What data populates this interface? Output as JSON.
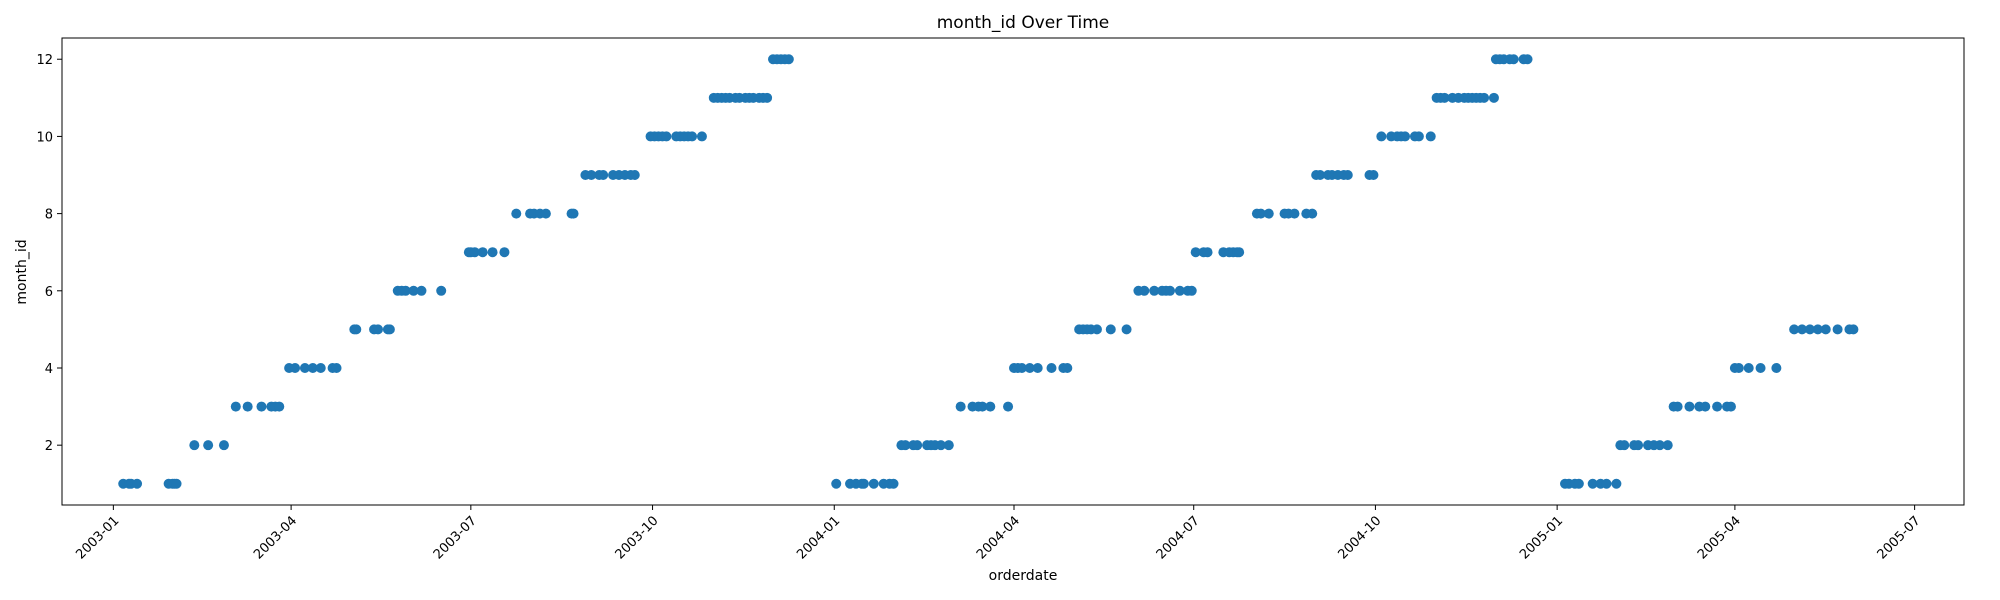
{
  "chart_data": {
    "type": "scatter",
    "title": "month_id Over Time",
    "xlabel": "orderdate",
    "ylabel": "month_id",
    "xlim": [
      "2002-12-06",
      "2005-07-26"
    ],
    "ylim": [
      0.45,
      12.55
    ],
    "grid": false,
    "marker_color": "#1f77b4",
    "x_ticks": [
      "2003-01",
      "2003-04",
      "2003-07",
      "2003-10",
      "2004-01",
      "2004-04",
      "2004-07",
      "2004-10",
      "2005-01",
      "2005-04",
      "2005-07"
    ],
    "y_ticks": [
      2,
      4,
      6,
      8,
      10,
      12
    ],
    "points": [
      {
        "x": "2003-01-06",
        "y": 1
      },
      {
        "x": "2003-01-09",
        "y": 1
      },
      {
        "x": "2003-01-10",
        "y": 1
      },
      {
        "x": "2003-01-13",
        "y": 1
      },
      {
        "x": "2003-01-29",
        "y": 1
      },
      {
        "x": "2003-01-31",
        "y": 1
      },
      {
        "x": "2003-02-01",
        "y": 1
      },
      {
        "x": "2003-02-02",
        "y": 1
      },
      {
        "x": "2003-02-11",
        "y": 2
      },
      {
        "x": "2003-02-18",
        "y": 2
      },
      {
        "x": "2003-02-26",
        "y": 2
      },
      {
        "x": "2003-03-04",
        "y": 3
      },
      {
        "x": "2003-03-10",
        "y": 3
      },
      {
        "x": "2003-03-17",
        "y": 3
      },
      {
        "x": "2003-03-22",
        "y": 3
      },
      {
        "x": "2003-03-24",
        "y": 3
      },
      {
        "x": "2003-03-26",
        "y": 3
      },
      {
        "x": "2003-03-31",
        "y": 4
      },
      {
        "x": "2003-04-03",
        "y": 4
      },
      {
        "x": "2003-04-08",
        "y": 4
      },
      {
        "x": "2003-04-12",
        "y": 4
      },
      {
        "x": "2003-04-16",
        "y": 4
      },
      {
        "x": "2003-04-22",
        "y": 4
      },
      {
        "x": "2003-04-24",
        "y": 4
      },
      {
        "x": "2003-05-03",
        "y": 5
      },
      {
        "x": "2003-05-04",
        "y": 5
      },
      {
        "x": "2003-05-13",
        "y": 5
      },
      {
        "x": "2003-05-15",
        "y": 5
      },
      {
        "x": "2003-05-20",
        "y": 5
      },
      {
        "x": "2003-05-21",
        "y": 5
      },
      {
        "x": "2003-05-25",
        "y": 6
      },
      {
        "x": "2003-05-27",
        "y": 6
      },
      {
        "x": "2003-05-29",
        "y": 6
      },
      {
        "x": "2003-06-02",
        "y": 6
      },
      {
        "x": "2003-06-06",
        "y": 6
      },
      {
        "x": "2003-06-16",
        "y": 6
      },
      {
        "x": "2003-06-30",
        "y": 7
      },
      {
        "x": "2003-07-01",
        "y": 7
      },
      {
        "x": "2003-07-03",
        "y": 7
      },
      {
        "x": "2003-07-07",
        "y": 7
      },
      {
        "x": "2003-07-12",
        "y": 7
      },
      {
        "x": "2003-07-18",
        "y": 7
      },
      {
        "x": "2003-07-24",
        "y": 8
      },
      {
        "x": "2003-07-31",
        "y": 8
      },
      {
        "x": "2003-08-02",
        "y": 8
      },
      {
        "x": "2003-08-05",
        "y": 8
      },
      {
        "x": "2003-08-08",
        "y": 8
      },
      {
        "x": "2003-08-21",
        "y": 8
      },
      {
        "x": "2003-08-22",
        "y": 8
      },
      {
        "x": "2003-08-28",
        "y": 9
      },
      {
        "x": "2003-08-31",
        "y": 9
      },
      {
        "x": "2003-09-04",
        "y": 9
      },
      {
        "x": "2003-09-06",
        "y": 9
      },
      {
        "x": "2003-09-11",
        "y": 9
      },
      {
        "x": "2003-09-14",
        "y": 9
      },
      {
        "x": "2003-09-17",
        "y": 9
      },
      {
        "x": "2003-09-20",
        "y": 9
      },
      {
        "x": "2003-09-22",
        "y": 9
      },
      {
        "x": "2003-09-30",
        "y": 10
      },
      {
        "x": "2003-10-02",
        "y": 10
      },
      {
        "x": "2003-10-04",
        "y": 10
      },
      {
        "x": "2003-10-06",
        "y": 10
      },
      {
        "x": "2003-10-08",
        "y": 10
      },
      {
        "x": "2003-10-13",
        "y": 10
      },
      {
        "x": "2003-10-15",
        "y": 10
      },
      {
        "x": "2003-10-17",
        "y": 10
      },
      {
        "x": "2003-10-19",
        "y": 10
      },
      {
        "x": "2003-10-21",
        "y": 10
      },
      {
        "x": "2003-10-26",
        "y": 10
      },
      {
        "x": "2003-11-01",
        "y": 11
      },
      {
        "x": "2003-11-03",
        "y": 11
      },
      {
        "x": "2003-11-05",
        "y": 11
      },
      {
        "x": "2003-11-07",
        "y": 11
      },
      {
        "x": "2003-11-09",
        "y": 11
      },
      {
        "x": "2003-11-12",
        "y": 11
      },
      {
        "x": "2003-11-14",
        "y": 11
      },
      {
        "x": "2003-11-17",
        "y": 11
      },
      {
        "x": "2003-11-19",
        "y": 11
      },
      {
        "x": "2003-11-21",
        "y": 11
      },
      {
        "x": "2003-11-24",
        "y": 11
      },
      {
        "x": "2003-11-26",
        "y": 11
      },
      {
        "x": "2003-11-28",
        "y": 11
      },
      {
        "x": "2003-12-01",
        "y": 12
      },
      {
        "x": "2003-12-03",
        "y": 12
      },
      {
        "x": "2003-12-05",
        "y": 12
      },
      {
        "x": "2003-12-07",
        "y": 12
      },
      {
        "x": "2003-12-09",
        "y": 12
      },
      {
        "x": "2004-01-02",
        "y": 1
      },
      {
        "x": "2004-01-09",
        "y": 1
      },
      {
        "x": "2004-01-12",
        "y": 1
      },
      {
        "x": "2004-01-15",
        "y": 1
      },
      {
        "x": "2004-01-16",
        "y": 1
      },
      {
        "x": "2004-01-21",
        "y": 1
      },
      {
        "x": "2004-01-26",
        "y": 1
      },
      {
        "x": "2004-01-29",
        "y": 1
      },
      {
        "x": "2004-01-31",
        "y": 1
      },
      {
        "x": "2004-02-04",
        "y": 2
      },
      {
        "x": "2004-02-06",
        "y": 2
      },
      {
        "x": "2004-02-10",
        "y": 2
      },
      {
        "x": "2004-02-12",
        "y": 2
      },
      {
        "x": "2004-02-17",
        "y": 2
      },
      {
        "x": "2004-02-19",
        "y": 2
      },
      {
        "x": "2004-02-21",
        "y": 2
      },
      {
        "x": "2004-02-24",
        "y": 2
      },
      {
        "x": "2004-02-28",
        "y": 2
      },
      {
        "x": "2004-03-05",
        "y": 3
      },
      {
        "x": "2004-03-11",
        "y": 3
      },
      {
        "x": "2004-03-14",
        "y": 3
      },
      {
        "x": "2004-03-16",
        "y": 3
      },
      {
        "x": "2004-03-20",
        "y": 3
      },
      {
        "x": "2004-03-29",
        "y": 3
      },
      {
        "x": "2004-04-01",
        "y": 4
      },
      {
        "x": "2004-04-03",
        "y": 4
      },
      {
        "x": "2004-04-05",
        "y": 4
      },
      {
        "x": "2004-04-09",
        "y": 4
      },
      {
        "x": "2004-04-13",
        "y": 4
      },
      {
        "x": "2004-04-20",
        "y": 4
      },
      {
        "x": "2004-04-26",
        "y": 4
      },
      {
        "x": "2004-04-28",
        "y": 4
      },
      {
        "x": "2004-05-04",
        "y": 5
      },
      {
        "x": "2004-05-06",
        "y": 5
      },
      {
        "x": "2004-05-08",
        "y": 5
      },
      {
        "x": "2004-05-10",
        "y": 5
      },
      {
        "x": "2004-05-13",
        "y": 5
      },
      {
        "x": "2004-05-20",
        "y": 5
      },
      {
        "x": "2004-05-28",
        "y": 5
      },
      {
        "x": "2004-06-03",
        "y": 6
      },
      {
        "x": "2004-06-06",
        "y": 6
      },
      {
        "x": "2004-06-11",
        "y": 6
      },
      {
        "x": "2004-06-15",
        "y": 6
      },
      {
        "x": "2004-06-17",
        "y": 6
      },
      {
        "x": "2004-06-19",
        "y": 6
      },
      {
        "x": "2004-06-24",
        "y": 6
      },
      {
        "x": "2004-06-28",
        "y": 6
      },
      {
        "x": "2004-06-30",
        "y": 6
      },
      {
        "x": "2004-07-02",
        "y": 7
      },
      {
        "x": "2004-07-06",
        "y": 7
      },
      {
        "x": "2004-07-08",
        "y": 7
      },
      {
        "x": "2004-07-16",
        "y": 7
      },
      {
        "x": "2004-07-19",
        "y": 7
      },
      {
        "x": "2004-07-21",
        "y": 7
      },
      {
        "x": "2004-07-23",
        "y": 7
      },
      {
        "x": "2004-07-24",
        "y": 7
      },
      {
        "x": "2004-08-02",
        "y": 8
      },
      {
        "x": "2004-08-04",
        "y": 8
      },
      {
        "x": "2004-08-08",
        "y": 8
      },
      {
        "x": "2004-08-16",
        "y": 8
      },
      {
        "x": "2004-08-18",
        "y": 8
      },
      {
        "x": "2004-08-21",
        "y": 8
      },
      {
        "x": "2004-08-27",
        "y": 8
      },
      {
        "x": "2004-08-30",
        "y": 8
      },
      {
        "x": "2004-09-01",
        "y": 9
      },
      {
        "x": "2004-09-03",
        "y": 9
      },
      {
        "x": "2004-09-07",
        "y": 9
      },
      {
        "x": "2004-09-09",
        "y": 9
      },
      {
        "x": "2004-09-12",
        "y": 9
      },
      {
        "x": "2004-09-15",
        "y": 9
      },
      {
        "x": "2004-09-17",
        "y": 9
      },
      {
        "x": "2004-09-28",
        "y": 9
      },
      {
        "x": "2004-09-30",
        "y": 9
      },
      {
        "x": "2004-10-04",
        "y": 10
      },
      {
        "x": "2004-10-09",
        "y": 10
      },
      {
        "x": "2004-10-12",
        "y": 10
      },
      {
        "x": "2004-10-14",
        "y": 10
      },
      {
        "x": "2004-10-16",
        "y": 10
      },
      {
        "x": "2004-10-21",
        "y": 10
      },
      {
        "x": "2004-10-23",
        "y": 10
      },
      {
        "x": "2004-10-29",
        "y": 10
      },
      {
        "x": "2004-11-01",
        "y": 11
      },
      {
        "x": "2004-11-03",
        "y": 11
      },
      {
        "x": "2004-11-05",
        "y": 11
      },
      {
        "x": "2004-11-09",
        "y": 11
      },
      {
        "x": "2004-11-12",
        "y": 11
      },
      {
        "x": "2004-11-15",
        "y": 11
      },
      {
        "x": "2004-11-17",
        "y": 11
      },
      {
        "x": "2004-11-19",
        "y": 11
      },
      {
        "x": "2004-11-21",
        "y": 11
      },
      {
        "x": "2004-11-23",
        "y": 11
      },
      {
        "x": "2004-11-25",
        "y": 11
      },
      {
        "x": "2004-11-30",
        "y": 11
      },
      {
        "x": "2004-12-01",
        "y": 12
      },
      {
        "x": "2004-12-03",
        "y": 12
      },
      {
        "x": "2004-12-05",
        "y": 12
      },
      {
        "x": "2004-12-08",
        "y": 12
      },
      {
        "x": "2004-12-10",
        "y": 12
      },
      {
        "x": "2004-12-15",
        "y": 12
      },
      {
        "x": "2004-12-17",
        "y": 12
      },
      {
        "x": "2005-01-05",
        "y": 1
      },
      {
        "x": "2005-01-07",
        "y": 1
      },
      {
        "x": "2005-01-10",
        "y": 1
      },
      {
        "x": "2005-01-12",
        "y": 1
      },
      {
        "x": "2005-01-19",
        "y": 1
      },
      {
        "x": "2005-01-23",
        "y": 1
      },
      {
        "x": "2005-01-26",
        "y": 1
      },
      {
        "x": "2005-01-31",
        "y": 1
      },
      {
        "x": "2005-02-02",
        "y": 2
      },
      {
        "x": "2005-02-04",
        "y": 2
      },
      {
        "x": "2005-02-09",
        "y": 2
      },
      {
        "x": "2005-02-11",
        "y": 2
      },
      {
        "x": "2005-02-16",
        "y": 2
      },
      {
        "x": "2005-02-19",
        "y": 2
      },
      {
        "x": "2005-02-22",
        "y": 2
      },
      {
        "x": "2005-02-26",
        "y": 2
      },
      {
        "x": "2005-03-01",
        "y": 3
      },
      {
        "x": "2005-03-03",
        "y": 3
      },
      {
        "x": "2005-03-09",
        "y": 3
      },
      {
        "x": "2005-03-14",
        "y": 3
      },
      {
        "x": "2005-03-17",
        "y": 3
      },
      {
        "x": "2005-03-23",
        "y": 3
      },
      {
        "x": "2005-03-28",
        "y": 3
      },
      {
        "x": "2005-03-30",
        "y": 3
      },
      {
        "x": "2005-04-01",
        "y": 4
      },
      {
        "x": "2005-04-03",
        "y": 4
      },
      {
        "x": "2005-04-08",
        "y": 4
      },
      {
        "x": "2005-04-14",
        "y": 4
      },
      {
        "x": "2005-04-22",
        "y": 4
      },
      {
        "x": "2005-05-01",
        "y": 5
      },
      {
        "x": "2005-05-05",
        "y": 5
      },
      {
        "x": "2005-05-09",
        "y": 5
      },
      {
        "x": "2005-05-13",
        "y": 5
      },
      {
        "x": "2005-05-17",
        "y": 5
      },
      {
        "x": "2005-05-23",
        "y": 5
      },
      {
        "x": "2005-05-29",
        "y": 5
      },
      {
        "x": "2005-05-31",
        "y": 5
      }
    ]
  }
}
